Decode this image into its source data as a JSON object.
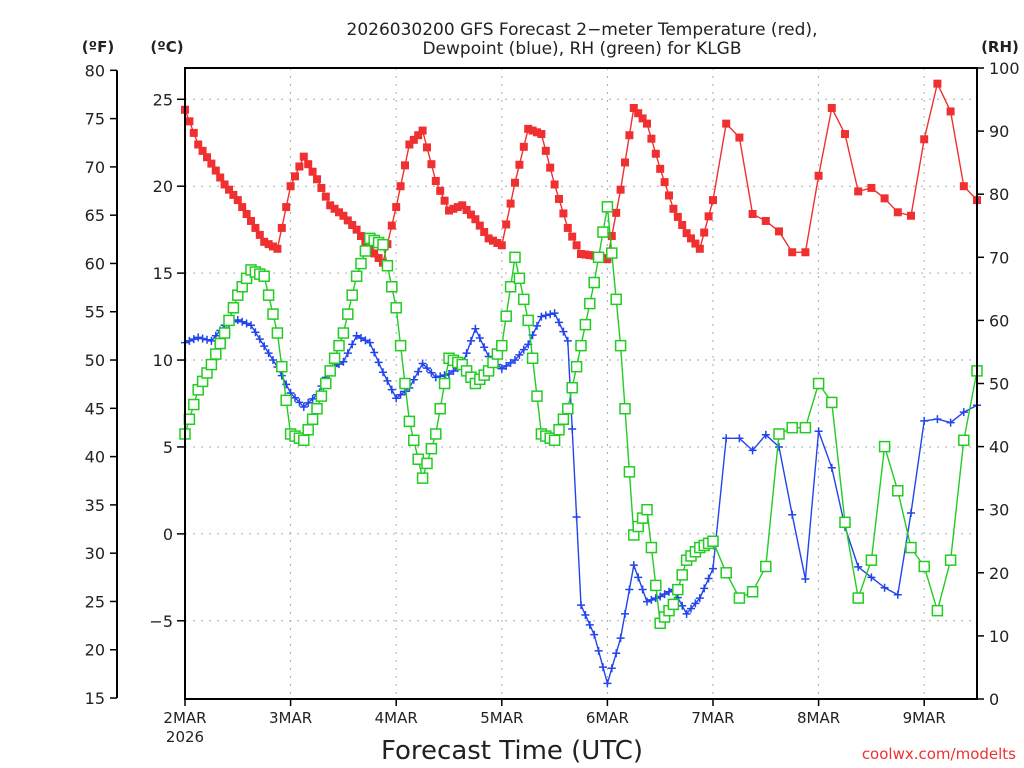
{
  "chart_data": {
    "type": "line",
    "title_line1": "2026030200 GFS Forecast 2−meter Temperature (red),",
    "title_line2": "Dewpoint (blue), RH (green) for KLGB",
    "xlabel": "Forecast Time (UTC)",
    "credit": "coolwx.com/modelts",
    "unit_labels": {
      "fahrenheit": "(ºF)",
      "celsius": "(ºC)",
      "rh": "(RH)"
    },
    "x_ticks": [
      "2MAR",
      "3MAR",
      "4MAR",
      "5MAR",
      "6MAR",
      "7MAR",
      "8MAR",
      "9MAR"
    ],
    "x_year": "2026",
    "x_range_hours": [
      0,
      180
    ],
    "celsius_ticks": [
      "25",
      "20",
      "15",
      "10",
      "5",
      "0",
      "−5"
    ],
    "celsius_tick_values": [
      25,
      20,
      15,
      10,
      5,
      0,
      -5
    ],
    "celsius_range": [
      -9.5,
      26.8
    ],
    "fahrenheit_ticks": [
      "80",
      "75",
      "70",
      "65",
      "60",
      "55",
      "50",
      "45",
      "40",
      "35",
      "30",
      "25",
      "20",
      "15"
    ],
    "rh_ticks": [
      "100",
      "90",
      "80",
      "70",
      "60",
      "50",
      "40",
      "30",
      "20",
      "10",
      "0"
    ],
    "rh_range": [
      0,
      100
    ],
    "grid": true,
    "time_step_note": "hourly 0-120h, 3-hourly 120-180h",
    "series": [
      {
        "name": "Temperature",
        "unit": "C",
        "color": "#f03030",
        "marker": "filled-square",
        "hours": [
          0,
          3,
          6,
          9,
          12,
          15,
          18,
          21,
          24,
          27,
          30,
          33,
          36,
          39,
          42,
          45,
          48,
          51,
          54,
          57,
          60,
          63,
          66,
          69,
          72,
          75,
          78,
          81,
          84,
          87,
          90,
          93,
          96,
          99,
          102,
          105,
          108,
          111,
          114,
          117,
          120,
          123,
          126,
          129,
          132,
          135,
          138,
          141,
          144,
          147,
          150,
          153,
          156,
          159,
          162,
          165,
          168,
          171,
          174,
          177,
          180
        ],
        "values": [
          24.4,
          22.4,
          21.3,
          20.1,
          19.2,
          18.0,
          16.8,
          16.4,
          20.0,
          21.7,
          20.4,
          18.9,
          18.3,
          17.5,
          16.4,
          15.6,
          18.8,
          22.4,
          23.2,
          20.3,
          18.6,
          18.9,
          18.1,
          17.0,
          16.6,
          20.2,
          23.3,
          23.0,
          20.1,
          17.6,
          16.1,
          16.0,
          15.8,
          19.8,
          24.5,
          23.6,
          21.0,
          18.7,
          17.3,
          16.4,
          19.2,
          23.6,
          22.8,
          18.4,
          18.0,
          17.4,
          16.2,
          16.2,
          20.6,
          24.5,
          23.0,
          19.7,
          19.9,
          19.3,
          18.5,
          18.3,
          22.7,
          25.9,
          24.3,
          20.0,
          19.2
        ]
      },
      {
        "name": "Dewpoint",
        "unit": "C",
        "color": "#2244ee",
        "marker": "plus",
        "hours": [
          0,
          3,
          6,
          9,
          12,
          15,
          18,
          21,
          24,
          27,
          30,
          33,
          36,
          39,
          42,
          45,
          48,
          51,
          54,
          57,
          60,
          63,
          66,
          69,
          72,
          75,
          78,
          81,
          84,
          87,
          90,
          93,
          96,
          99,
          102,
          105,
          108,
          111,
          114,
          117,
          120,
          123,
          126,
          129,
          132,
          135,
          138,
          141,
          144,
          147,
          150,
          153,
          156,
          159,
          162,
          165,
          168,
          171,
          174,
          177,
          180
        ],
        "values": [
          11.0,
          11.3,
          11.1,
          12.0,
          12.3,
          12.0,
          10.8,
          9.6,
          8.1,
          7.3,
          8.0,
          9.5,
          9.9,
          11.4,
          11.0,
          9.3,
          7.8,
          8.4,
          9.8,
          9.0,
          9.2,
          9.7,
          11.8,
          10.2,
          9.5,
          10.0,
          10.9,
          12.5,
          12.7,
          11.1,
          -4.1,
          -5.8,
          -8.6,
          -6.0,
          -1.8,
          -3.9,
          -3.6,
          -3.2,
          -4.6,
          -3.7,
          -2.0,
          5.5,
          5.5,
          4.8,
          5.7,
          5.0,
          1.1,
          -2.6,
          5.9,
          3.8,
          0.4,
          -1.9,
          -2.5,
          -3.1,
          -3.5,
          1.2,
          6.5,
          6.6,
          6.4,
          7.0,
          7.4
        ]
      },
      {
        "name": "RH",
        "unit": "%",
        "color": "#22cc22",
        "marker": "open-square",
        "hours": [
          0,
          3,
          6,
          9,
          12,
          15,
          18,
          21,
          24,
          27,
          30,
          33,
          36,
          39,
          42,
          45,
          48,
          51,
          54,
          57,
          60,
          63,
          66,
          69,
          72,
          75,
          78,
          81,
          84,
          87,
          90,
          93,
          96,
          99,
          102,
          105,
          108,
          111,
          114,
          117,
          120,
          123,
          126,
          129,
          132,
          135,
          138,
          141,
          144,
          147,
          150,
          153,
          156,
          159,
          162,
          165,
          168,
          171,
          174,
          177,
          180
        ],
        "values": [
          42,
          49,
          53,
          58,
          64,
          68,
          67,
          58,
          42,
          41,
          46,
          52,
          58,
          67,
          73,
          72,
          62,
          44,
          35,
          42,
          54,
          53,
          50,
          52,
          56,
          70,
          60,
          42,
          41,
          46,
          56,
          66,
          78,
          56,
          26,
          30,
          12,
          15,
          22,
          24,
          25,
          20,
          16,
          17,
          21,
          42,
          43,
          43,
          50,
          47,
          28,
          16,
          22,
          40,
          33,
          24,
          21,
          14,
          22,
          41,
          52
        ]
      }
    ]
  }
}
